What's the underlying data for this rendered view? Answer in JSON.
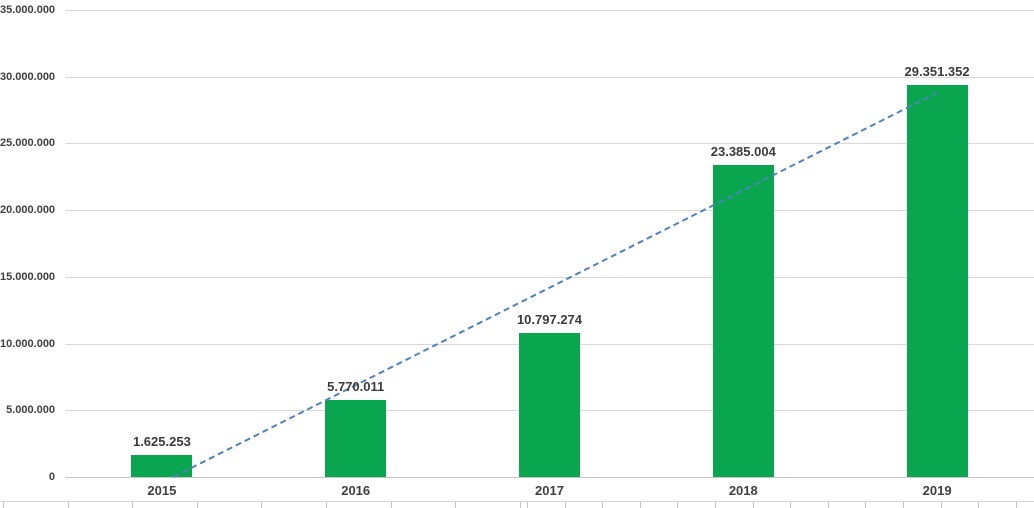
{
  "chart_data": {
    "type": "bar",
    "title": "",
    "xlabel": "",
    "ylabel": "",
    "categories": [
      "2015",
      "2016",
      "2017",
      "2018",
      "2019"
    ],
    "values": [
      1625253,
      5770011,
      10797274,
      23385004,
      29351352
    ],
    "data_labels": [
      "1.625.253",
      "5.770.011",
      "10.797.274",
      "23.385.004",
      "29.351.352"
    ],
    "ylim": [
      0,
      35000000
    ],
    "y_tick_interval": 5000000,
    "y_tick_labels": [
      "0",
      "5.000.000",
      "10.000.000",
      "15.000.000",
      "20.000.000",
      "25.000.000",
      "30.000.000",
      "35.000.000"
    ],
    "grid": true,
    "legend_position": "none",
    "bar_color": "#0aa64f",
    "label_color": "#3b3b3b",
    "axis_text_color": "#404040",
    "gridline_color": "#d9d9d9",
    "trendline": {
      "type": "linear",
      "style": "dashed",
      "color": "#4f81bd"
    }
  }
}
